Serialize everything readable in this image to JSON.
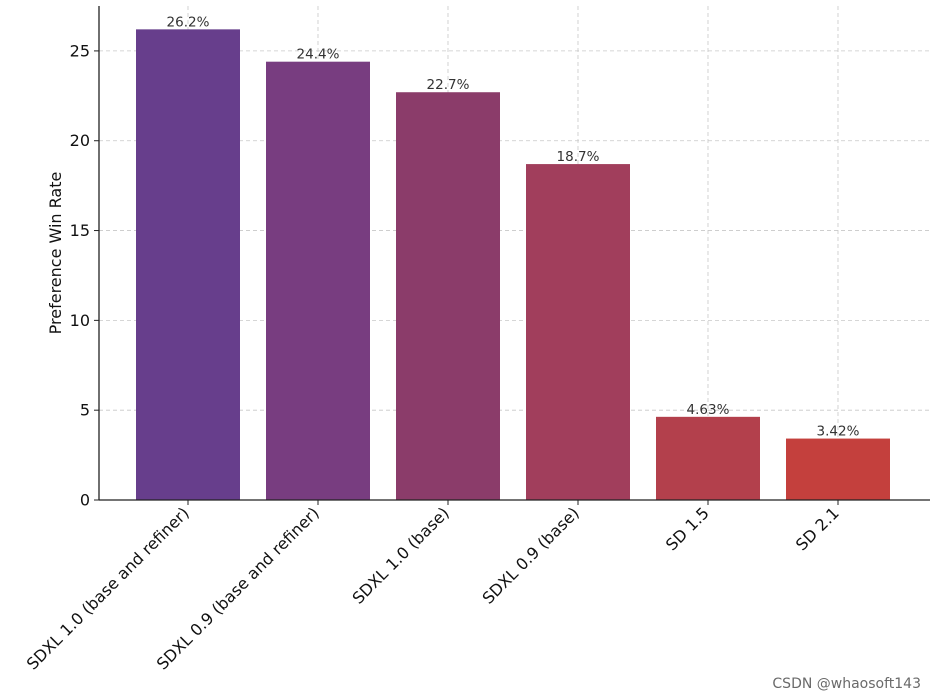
{
  "chart_data": {
    "type": "bar",
    "categories": [
      "SDXL 1.0 (base and refiner)",
      "SDXL 0.9 (base and refiner)",
      "SDXL 1.0 (base)",
      "SDXL 0.9 (base)",
      "SD 1.5",
      "SD 2.1"
    ],
    "values": [
      26.2,
      24.4,
      22.7,
      18.7,
      4.63,
      3.42
    ],
    "data_labels": [
      "26.2%",
      "24.4%",
      "22.7%",
      "18.7%",
      "4.63%",
      "3.42%"
    ],
    "bar_colors": [
      "#673e8c",
      "#783d80",
      "#8b3c6a",
      "#a13e5c",
      "#b3404c",
      "#c4403d"
    ],
    "title": "",
    "xlabel": "",
    "ylabel": "Preference Win Rate",
    "ylim": [
      0,
      27.5
    ],
    "yticks": [
      0,
      5,
      10,
      15,
      20,
      25
    ],
    "grid": true,
    "x_tick_rotation_deg": 45
  },
  "watermark": "CSDN @whaosoft143"
}
